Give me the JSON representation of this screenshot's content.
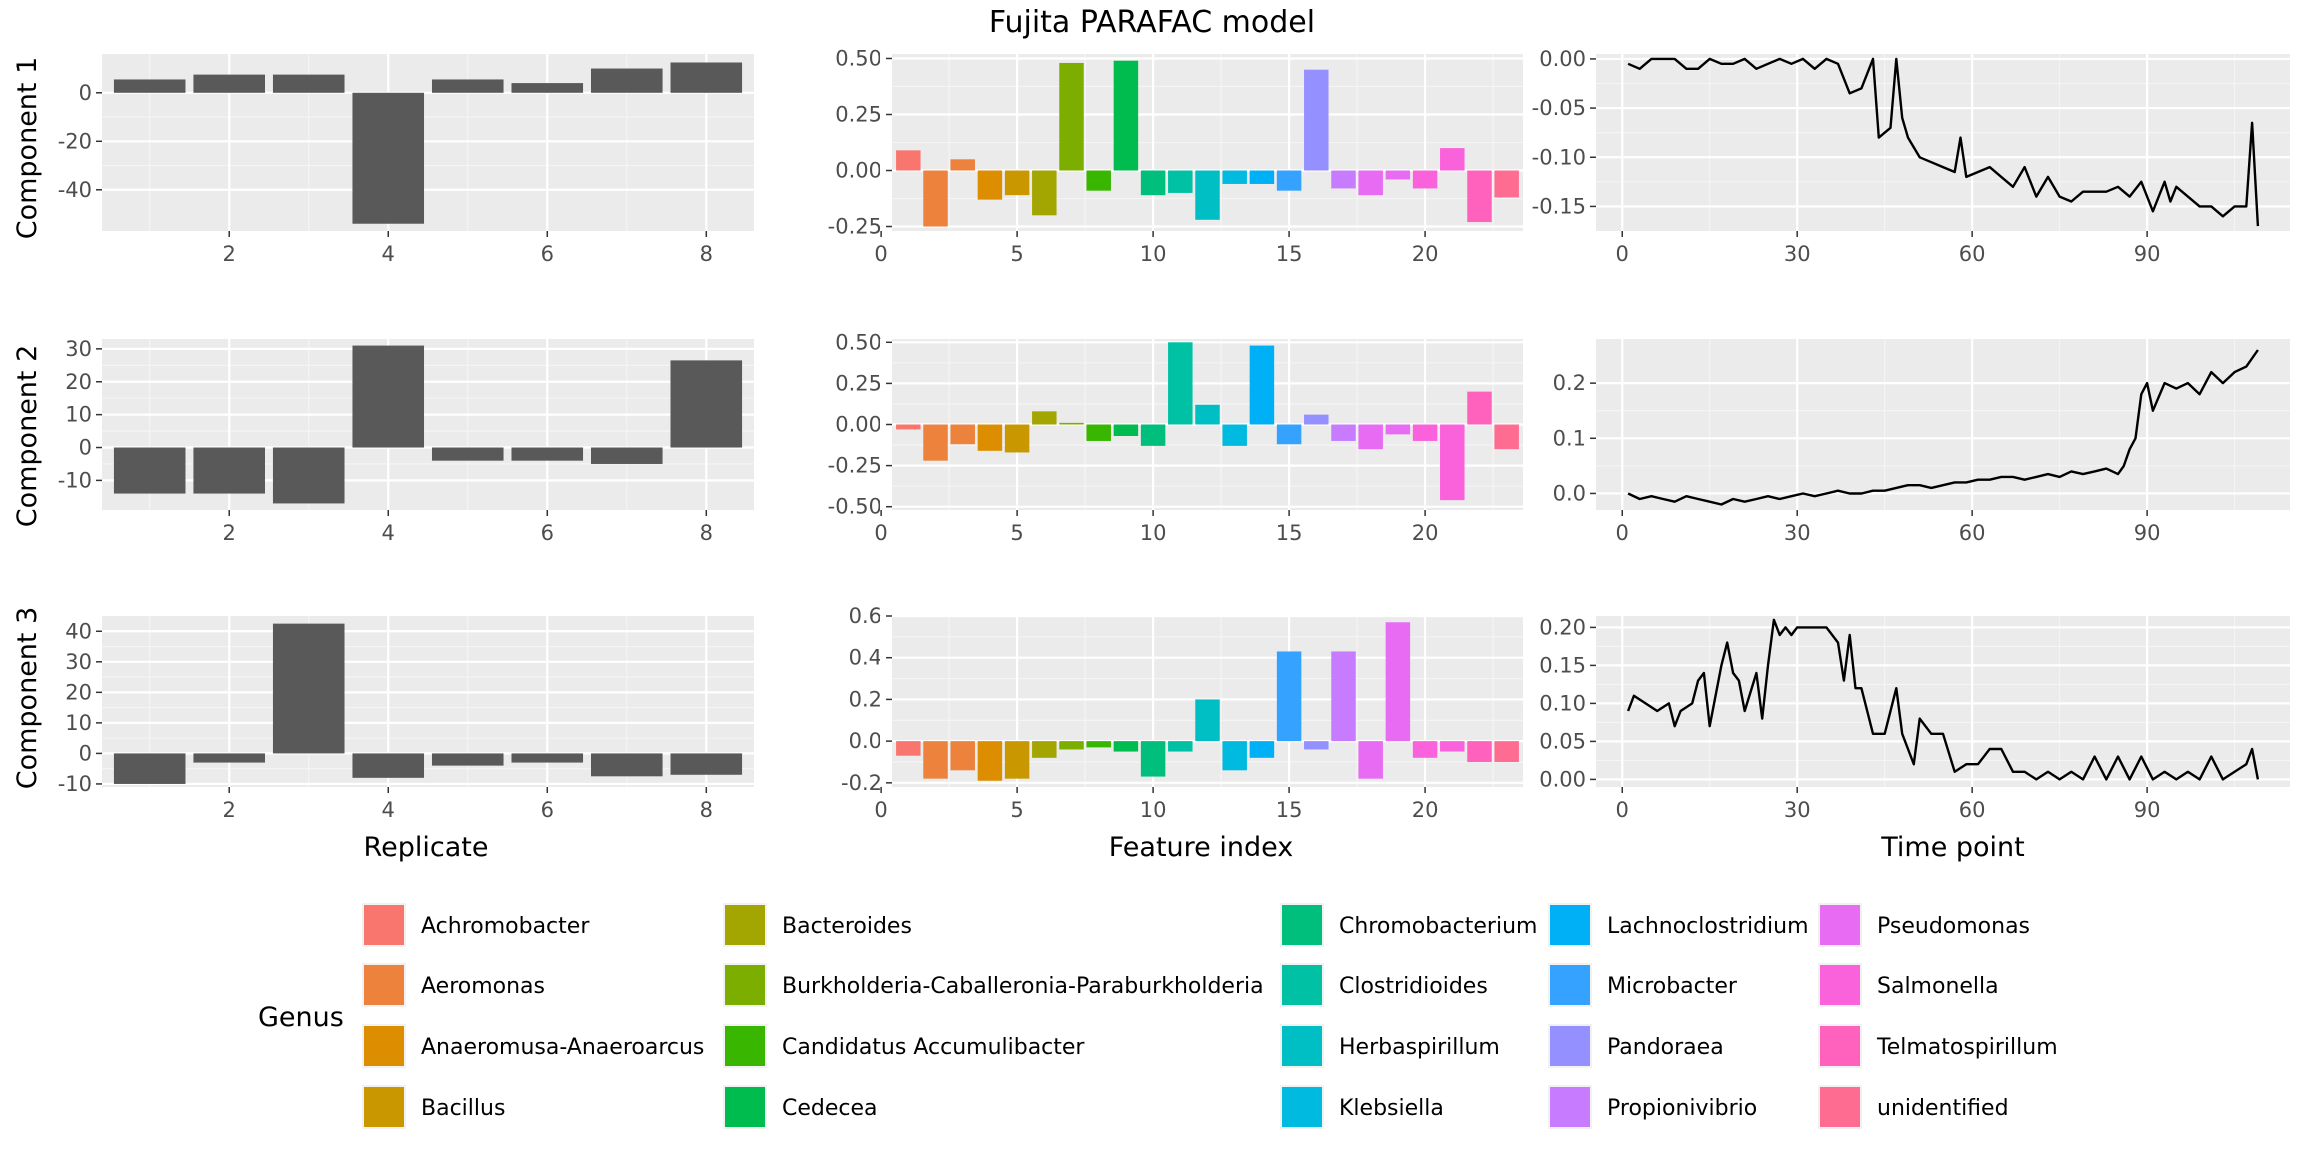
{
  "chart_data": {
    "type": "bar",
    "title": "Fujita PARAFAC model",
    "row_labels": [
      "Component 1",
      "Component 2",
      "Component 3"
    ],
    "column_xlabels": [
      "Replicate",
      "Feature index",
      "Time point"
    ],
    "legend": {
      "title": "Genus",
      "placement": "bottom",
      "entries": [
        {
          "name": "Achromobacter",
          "color": "#F8766D"
        },
        {
          "name": "Aeromonas",
          "color": "#EC823C"
        },
        {
          "name": "Anaeromusa-Anaeroarcus",
          "color": "#DC8E00"
        },
        {
          "name": "Bacillus",
          "color": "#C99800"
        },
        {
          "name": "Bacteroides",
          "color": "#A3A500"
        },
        {
          "name": "Burkholderia-Caballeronia-Paraburkholderia",
          "color": "#7CAE00"
        },
        {
          "name": "Candidatus Accumulibacter",
          "color": "#39B600"
        },
        {
          "name": "Cedecea",
          "color": "#00BB4E"
        },
        {
          "name": "Chromobacterium",
          "color": "#00BF7D"
        },
        {
          "name": "Clostridioides",
          "color": "#00C1A3"
        },
        {
          "name": "Herbaspirillum",
          "color": "#00BFC4"
        },
        {
          "name": "Klebsiella",
          "color": "#00BAE0"
        },
        {
          "name": "Lachnoclostridium",
          "color": "#00B0F6"
        },
        {
          "name": "Microbacter",
          "color": "#35A2FF"
        },
        {
          "name": "Pandoraea",
          "color": "#9590FF"
        },
        {
          "name": "Propionivibrio",
          "color": "#C77CFF"
        },
        {
          "name": "Pseudomonas",
          "color": "#E76BF3"
        },
        {
          "name": "Salmonella",
          "color": "#FA62DB"
        },
        {
          "name": "Telmatospirillum",
          "color": "#FF62BC"
        },
        {
          "name": "unidentified",
          "color": "#FF6C91"
        }
      ]
    },
    "replicate": {
      "type": "bar",
      "x": [
        1,
        2,
        3,
        4,
        5,
        6,
        7,
        8
      ],
      "bar_color": "#595959",
      "components": [
        {
          "values": [
            5.5,
            7.5,
            7.5,
            -54,
            5.5,
            4,
            10,
            12.5
          ],
          "ylim": [
            -57,
            16
          ],
          "yticks": [
            0,
            -20,
            -40
          ],
          "yticks_labels": [
            "0",
            "-20",
            "-40"
          ]
        },
        {
          "values": [
            -14,
            -14,
            -17,
            31,
            -4,
            -4,
            -5,
            26.5
          ],
          "ylim": [
            -19,
            33
          ],
          "yticks": [
            30,
            20,
            10,
            0,
            -10
          ],
          "yticks_labels": [
            "30",
            "20",
            "10",
            "0",
            "-10"
          ]
        },
        {
          "values": [
            -10,
            -3,
            42.5,
            -8,
            -4,
            -3,
            -7.5,
            -7
          ],
          "ylim": [
            -11,
            45
          ],
          "yticks": [
            40,
            30,
            20,
            10,
            0,
            -10
          ],
          "yticks_labels": [
            "40",
            "30",
            "20",
            "10",
            "0",
            "-10"
          ]
        }
      ],
      "xlim": [
        0.4,
        8.6
      ],
      "xticks": [
        2,
        4,
        6,
        8
      ],
      "xticks_labels": [
        "2",
        "4",
        "6",
        "8"
      ]
    },
    "feature": {
      "type": "bar",
      "x": [
        1,
        2,
        3,
        4,
        5,
        6,
        7,
        8,
        9,
        10,
        11,
        12,
        13,
        14,
        15,
        16,
        17,
        18,
        19,
        20,
        21,
        22,
        23
      ],
      "genus_index": [
        0,
        1,
        1,
        2,
        3,
        4,
        5,
        6,
        7,
        8,
        9,
        10,
        11,
        12,
        13,
        14,
        15,
        16,
        16,
        17,
        17,
        18,
        19
      ],
      "components": [
        {
          "values": [
            0.09,
            -0.25,
            0.05,
            -0.13,
            -0.11,
            -0.2,
            0.48,
            -0.09,
            0.49,
            -0.11,
            -0.1,
            -0.22,
            -0.06,
            -0.06,
            -0.09,
            0.45,
            -0.08,
            -0.11,
            -0.04,
            -0.08,
            0.1,
            -0.23,
            -0.12
          ],
          "ylim": [
            -0.27,
            0.52
          ],
          "yticks": [
            0.5,
            0.25,
            0,
            -0.25
          ],
          "yticks_labels": [
            "0.50",
            "0.25",
            "0.00",
            "-0.25"
          ]
        },
        {
          "values": [
            -0.03,
            -0.22,
            -0.12,
            -0.16,
            -0.17,
            0.08,
            0.01,
            -0.1,
            -0.07,
            -0.13,
            0.5,
            0.12,
            -0.13,
            0.48,
            -0.12,
            0.06,
            -0.1,
            -0.15,
            -0.06,
            -0.1,
            -0.46,
            0.2,
            -0.15
          ],
          "ylim": [
            -0.52,
            0.52
          ],
          "yticks": [
            0.5,
            0.25,
            0,
            -0.25,
            -0.5
          ],
          "yticks_labels": [
            "0.50",
            "0.25",
            "0.00",
            "-0.25",
            "-0.50"
          ]
        },
        {
          "values": [
            -0.07,
            -0.18,
            -0.14,
            -0.19,
            -0.18,
            -0.08,
            -0.04,
            -0.03,
            -0.05,
            -0.17,
            -0.05,
            0.2,
            -0.14,
            -0.08,
            0.43,
            -0.04,
            0.43,
            -0.18,
            0.57,
            -0.08,
            -0.05,
            -0.1,
            -0.1
          ],
          "ylim": [
            -0.22,
            0.6
          ],
          "yticks": [
            0.6,
            0.4,
            0.2,
            0,
            -0.2
          ],
          "yticks_labels": [
            "0.6",
            "0.4",
            "0.2",
            "0.0",
            "-0.2"
          ]
        }
      ],
      "xlim": [
        0.4,
        23.6
      ],
      "xticks": [
        0,
        5,
        10,
        15,
        20
      ],
      "xticks_labels": [
        "0",
        "5",
        "10",
        "15",
        "20"
      ]
    },
    "time": {
      "type": "line",
      "line_color": "#000000",
      "components": [
        {
          "x": [
            1,
            3,
            5,
            7,
            9,
            11,
            13,
            15,
            17,
            19,
            21,
            23,
            25,
            27,
            29,
            31,
            33,
            35,
            37,
            39,
            41,
            43,
            44,
            46,
            47,
            48,
            49,
            50,
            51,
            53,
            55,
            57,
            58,
            59,
            61,
            63,
            65,
            67,
            69,
            71,
            73,
            75,
            77,
            79,
            81,
            83,
            85,
            87,
            89,
            91,
            93,
            94,
            95,
            97,
            99,
            101,
            103,
            105,
            107,
            108,
            109
          ],
          "y": [
            -0.005,
            -0.01,
            0,
            0,
            0,
            -0.01,
            -0.01,
            0,
            -0.005,
            -0.005,
            0,
            -0.01,
            -0.005,
            0,
            -0.005,
            0,
            -0.01,
            0,
            -0.005,
            -0.035,
            -0.03,
            0,
            -0.08,
            -0.07,
            0,
            -0.06,
            -0.08,
            -0.09,
            -0.1,
            -0.105,
            -0.11,
            -0.115,
            -0.08,
            -0.12,
            -0.115,
            -0.11,
            -0.12,
            -0.13,
            -0.11,
            -0.14,
            -0.12,
            -0.14,
            -0.145,
            -0.135,
            -0.135,
            -0.135,
            -0.13,
            -0.14,
            -0.125,
            -0.155,
            -0.125,
            -0.145,
            -0.13,
            -0.14,
            -0.15,
            -0.15,
            -0.16,
            -0.15,
            -0.15,
            -0.065,
            -0.17
          ],
          "ylim": [
            -0.175,
            0.005
          ],
          "yticks": [
            0,
            -0.05,
            -0.1,
            -0.15
          ],
          "yticks_labels": [
            "0.00",
            "-0.05",
            "-0.10",
            "-0.15"
          ],
          "xlim": [
            -4.5,
            114.5
          ],
          "xticks": [
            0,
            30,
            60,
            90
          ]
        },
        {
          "x": [
            1,
            3,
            5,
            7,
            9,
            11,
            13,
            15,
            17,
            19,
            21,
            23,
            25,
            27,
            29,
            31,
            33,
            35,
            37,
            39,
            41,
            43,
            45,
            47,
            49,
            51,
            53,
            55,
            57,
            59,
            61,
            63,
            65,
            67,
            69,
            71,
            73,
            75,
            77,
            79,
            81,
            83,
            85,
            86,
            87,
            88,
            89,
            90,
            91,
            93,
            95,
            97,
            99,
            101,
            103,
            105,
            107,
            109
          ],
          "y": [
            0,
            -0.01,
            -0.005,
            -0.01,
            -0.015,
            -0.005,
            -0.01,
            -0.015,
            -0.02,
            -0.01,
            -0.015,
            -0.01,
            -0.005,
            -0.01,
            -0.005,
            0,
            -0.005,
            0,
            0.005,
            0,
            0,
            0.005,
            0.005,
            0.01,
            0.015,
            0.015,
            0.01,
            0.015,
            0.02,
            0.02,
            0.025,
            0.025,
            0.03,
            0.03,
            0.025,
            0.03,
            0.035,
            0.03,
            0.04,
            0.035,
            0.04,
            0.045,
            0.035,
            0.05,
            0.08,
            0.1,
            0.18,
            0.2,
            0.15,
            0.2,
            0.19,
            0.2,
            0.18,
            0.22,
            0.2,
            0.22,
            0.23,
            0.26
          ],
          "ylim": [
            -0.03,
            0.28
          ],
          "yticks": [
            0.2,
            0.1,
            0
          ],
          "yticks_labels": [
            "0.2",
            "0.1",
            "0.0"
          ],
          "xlim": [
            -4.5,
            114.5
          ],
          "xticks": [
            0,
            30,
            60,
            90
          ]
        },
        {
          "x": [
            1,
            2,
            4,
            6,
            8,
            9,
            10,
            12,
            13,
            14,
            15,
            17,
            18,
            19,
            20,
            21,
            23,
            24,
            25,
            26,
            27,
            28,
            29,
            30,
            31,
            33,
            35,
            37,
            38,
            39,
            40,
            41,
            43,
            45,
            47,
            48,
            49,
            50,
            51,
            53,
            55,
            57,
            59,
            61,
            63,
            65,
            67,
            69,
            71,
            73,
            75,
            77,
            79,
            81,
            83,
            85,
            87,
            89,
            91,
            93,
            95,
            97,
            99,
            101,
            103,
            105,
            107,
            108,
            109
          ],
          "y": [
            0.09,
            0.11,
            0.1,
            0.09,
            0.1,
            0.07,
            0.09,
            0.1,
            0.13,
            0.14,
            0.07,
            0.15,
            0.18,
            0.14,
            0.13,
            0.09,
            0.14,
            0.08,
            0.15,
            0.21,
            0.19,
            0.2,
            0.19,
            0.2,
            0.2,
            0.2,
            0.2,
            0.18,
            0.13,
            0.19,
            0.12,
            0.12,
            0.06,
            0.06,
            0.12,
            0.06,
            0.04,
            0.02,
            0.08,
            0.06,
            0.06,
            0.01,
            0.02,
            0.02,
            0.04,
            0.04,
            0.01,
            0.01,
            0,
            0.01,
            0,
            0.01,
            0,
            0.03,
            0,
            0.03,
            0,
            0.03,
            0,
            0.01,
            0,
            0.01,
            0,
            0.03,
            0,
            0.01,
            0.02,
            0.04,
            0
          ],
          "ylim": [
            -0.01,
            0.215
          ],
          "yticks": [
            0.2,
            0.15,
            0.1,
            0.05,
            0
          ],
          "yticks_labels": [
            "0.20",
            "0.15",
            "0.10",
            "0.05",
            "0.00"
          ],
          "xlim": [
            -4.5,
            114.5
          ],
          "xticks": [
            0,
            30,
            60,
            90
          ]
        }
      ]
    }
  }
}
